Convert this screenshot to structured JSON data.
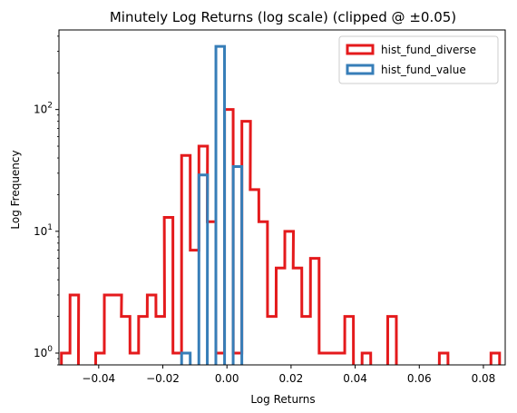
{
  "chart_data": {
    "type": "histogram-step",
    "title": "Minutely Log Returns (log scale) (clipped @ ±0.05)",
    "xlabel": "Log Returns",
    "ylabel": "Log Frequency",
    "xlim": [
      -0.0524,
      0.0868
    ],
    "ylim": [
      0.8,
      450
    ],
    "yscale": "log",
    "grid": false,
    "legend_position": "top-right",
    "x_ticks": [
      -0.04,
      -0.02,
      0.0,
      0.02,
      0.04,
      0.06,
      0.08
    ],
    "x_tick_labels": [
      "−0.04",
      "−0.02",
      "0.00",
      "0.02",
      "0.04",
      "0.06",
      "0.08"
    ],
    "y_ticks": [
      1,
      10,
      100
    ],
    "y_tick_base": "10",
    "y_tick_exps": [
      "0",
      "1",
      "2"
    ],
    "series": [
      {
        "name": "hist_fund_diverse",
        "color": "#e41a1c",
        "bin_width": 0.00268,
        "bins": [
          [
            -0.0503,
            1
          ],
          [
            -0.0476,
            3
          ],
          [
            -0.045,
            0
          ],
          [
            -0.0423,
            0
          ],
          [
            -0.0396,
            1
          ],
          [
            -0.0369,
            3
          ],
          [
            -0.0342,
            3
          ],
          [
            -0.0316,
            2
          ],
          [
            -0.0289,
            1
          ],
          [
            -0.0262,
            2
          ],
          [
            -0.0235,
            3
          ],
          [
            -0.0208,
            2
          ],
          [
            -0.0182,
            13
          ],
          [
            -0.0155,
            1
          ],
          [
            -0.0128,
            42
          ],
          [
            -0.0101,
            7
          ],
          [
            -0.0074,
            50
          ],
          [
            -0.0048,
            12
          ],
          [
            -0.0021,
            1
          ],
          [
            0.0006,
            100
          ],
          [
            0.0033,
            1
          ],
          [
            0.006,
            80
          ],
          [
            0.0086,
            22
          ],
          [
            0.0113,
            12
          ],
          [
            0.014,
            2
          ],
          [
            0.0167,
            5
          ],
          [
            0.0194,
            10
          ],
          [
            0.022,
            5
          ],
          [
            0.0247,
            2
          ],
          [
            0.0274,
            6
          ],
          [
            0.0301,
            1
          ],
          [
            0.0328,
            1
          ],
          [
            0.0354,
            1
          ],
          [
            0.0381,
            2
          ],
          [
            0.0408,
            0
          ],
          [
            0.0435,
            1
          ],
          [
            0.0462,
            0
          ],
          [
            0.0488,
            0
          ],
          [
            0.0515,
            2
          ],
          [
            0.0542,
            0
          ],
          [
            0.0569,
            0
          ],
          [
            0.0596,
            0
          ],
          [
            0.0622,
            0
          ],
          [
            0.0649,
            0
          ],
          [
            0.0676,
            1
          ],
          [
            0.0703,
            0
          ],
          [
            0.073,
            0
          ],
          [
            0.0756,
            0
          ],
          [
            0.0783,
            0
          ],
          [
            0.081,
            0
          ],
          [
            0.0837,
            1
          ]
        ]
      },
      {
        "name": "hist_fund_value",
        "color": "#377eb8",
        "bin_width": 0.00268,
        "bins": [
          [
            -0.0128,
            1
          ],
          [
            -0.0101,
            0
          ],
          [
            -0.0074,
            29
          ],
          [
            -0.0048,
            0
          ],
          [
            -0.0021,
            330
          ],
          [
            0.0006,
            0
          ],
          [
            0.0033,
            34
          ]
        ]
      }
    ]
  }
}
